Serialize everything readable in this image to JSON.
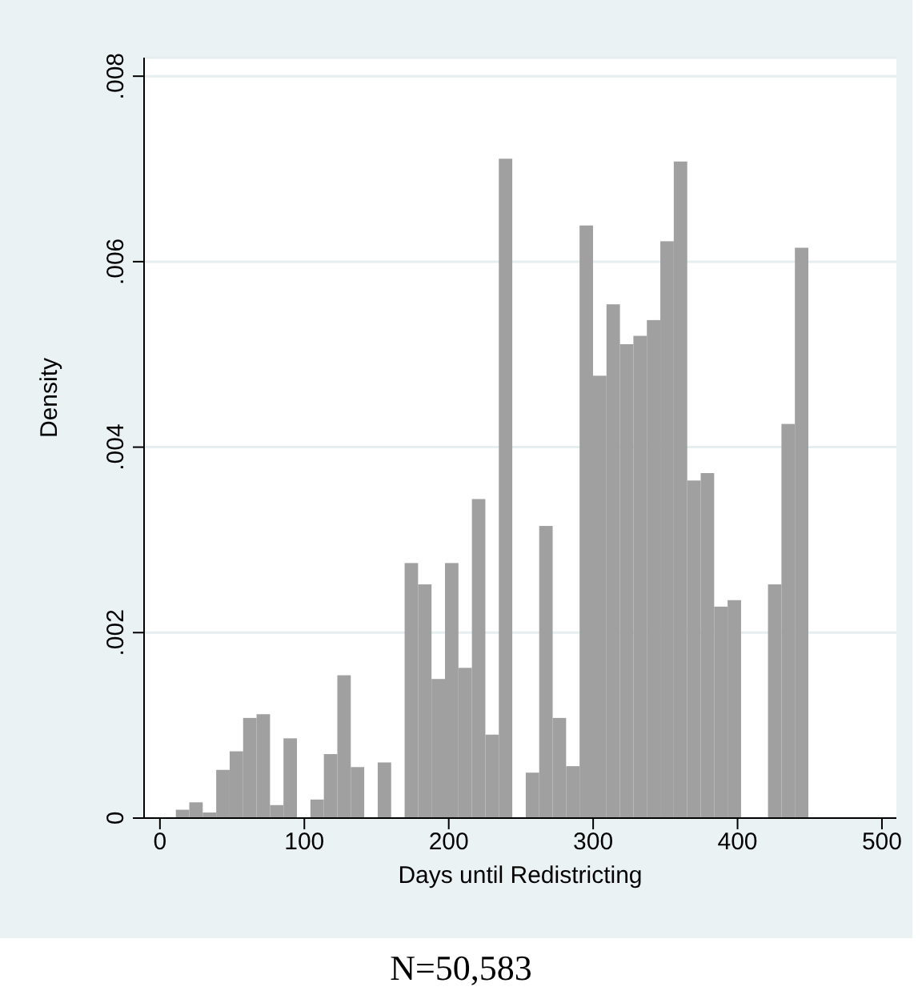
{
  "chart_data": {
    "type": "histogram",
    "xlabel": "Days until Redistricting",
    "ylabel": "Density",
    "color": "#a0a0a0",
    "bins": [
      11,
      20.32,
      29.64,
      38.96,
      48.28,
      57.6,
      66.92,
      76.24,
      85.56,
      94.88,
      104.2,
      113.52,
      122.84,
      132.16,
      141.48,
      150.8,
      160.12,
      169.44,
      178.76,
      188.08,
      197.4,
      206.72,
      216.04,
      225.36,
      234.68,
      244,
      253.32,
      262.64,
      271.96,
      281.28,
      290.6,
      299.92,
      309.24,
      318.56,
      327.88,
      337.2,
      346.52,
      355.84,
      365.16,
      374.48,
      383.8,
      393.12,
      402.44,
      411.76,
      421.08,
      430.4,
      439.72,
      449.04
    ],
    "values": [
      9e-05,
      0.00017,
      6e-05,
      0.00052,
      0.00072,
      0.00108,
      0.00112,
      0.00014,
      0.00086,
      0,
      0.0002,
      0.00069,
      0.00154,
      0.00055,
      0,
      0.0006,
      0,
      0.00275,
      0.00252,
      0.0015,
      0.00275,
      0.00162,
      0.00344,
      0.0009,
      0.00711,
      0,
      0.00049,
      0.00315,
      0.00108,
      0.00056,
      0.00639,
      0.00477,
      0.00554,
      0.00511,
      0.0052,
      0.00537,
      0.00622,
      0.00708,
      0.00364,
      0.00372,
      0.00228,
      0.00235,
      0,
      0,
      0.00252,
      0.00425,
      0.00615
    ],
    "xlim": [
      -11,
      510
    ],
    "xticks": [
      0,
      100,
      200,
      300,
      400,
      500
    ],
    "ylim": [
      0,
      0.0082
    ],
    "yticks": [
      0,
      {
        "value": 0.002,
        "label": ".002"
      },
      {
        "value": 0.004,
        "label": ".004"
      },
      {
        "value": 0.006,
        "label": ".006"
      },
      {
        "value": 0.008,
        "label": ".008"
      }
    ],
    "grid": "y",
    "annotations": [
      "N=50,583"
    ]
  }
}
